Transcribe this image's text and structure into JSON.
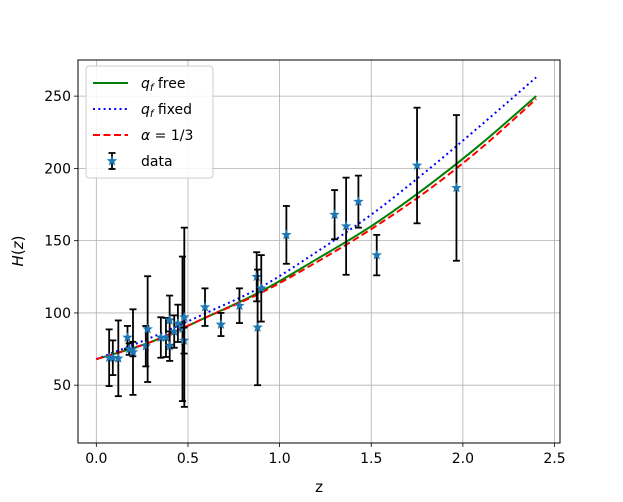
{
  "chart_data": {
    "type": "scatter",
    "xlabel": "z",
    "ylabel": "H(z)",
    "xlim": [
      -0.1,
      2.53
    ],
    "ylim": [
      10,
      275
    ],
    "grid": true,
    "x_ticks": [
      0.0,
      0.5,
      1.0,
      1.5,
      2.0,
      2.5
    ],
    "x_tick_labels": [
      "0.0",
      "0.5",
      "1.0",
      "1.5",
      "2.0",
      "2.5"
    ],
    "y_ticks": [
      50,
      100,
      150,
      200,
      250
    ],
    "y_tick_labels": [
      "50",
      "100",
      "150",
      "200",
      "250"
    ],
    "legend_position": "top-left",
    "legend": [
      {
        "label": "q_f free",
        "text_main": "q",
        "text_sub": "f",
        "text_rest": " free",
        "style": "solid",
        "color": "#008000"
      },
      {
        "label": "q_f fixed",
        "text_main": "q",
        "text_sub": "f",
        "text_rest": " fixed",
        "style": "dotted",
        "color": "#0000ff"
      },
      {
        "label": "α = 1/3",
        "text_main": "α",
        "text_sub": "",
        "text_rest": " = 1/3",
        "style": "dashed",
        "color": "#ff0000"
      },
      {
        "label": "data",
        "text_main": "",
        "text_sub": "",
        "text_rest": "data",
        "style": "marker",
        "color": "#1f77b4"
      }
    ],
    "series": [
      {
        "name": "q_f free",
        "style": "solid",
        "color": "#008000",
        "x": [
          0,
          0.3,
          0.6,
          0.9,
          1.2,
          1.5,
          1.8,
          2.1,
          2.4
        ],
        "y": [
          68,
          80,
          97,
          115,
          137,
          160,
          187,
          217,
          250
        ]
      },
      {
        "name": "q_f fixed",
        "style": "dotted",
        "color": "#0000ff",
        "x": [
          0,
          0.3,
          0.6,
          0.9,
          1.2,
          1.5,
          1.8,
          2.1,
          2.4
        ],
        "y": [
          68,
          83,
          100,
          118,
          142,
          168,
          198,
          230,
          263
        ]
      },
      {
        "name": "α = 1/3",
        "style": "dashed",
        "color": "#ff0000",
        "x": [
          0,
          0.3,
          0.6,
          0.9,
          1.2,
          1.5,
          1.8,
          2.1,
          2.4
        ],
        "y": [
          68,
          80,
          97,
          114,
          135,
          158,
          184,
          214,
          248
        ]
      }
    ],
    "data": {
      "name": "data",
      "color": "#1f77b4",
      "points": [
        {
          "x": 0.07,
          "y": 69,
          "err": 19.6
        },
        {
          "x": 0.09,
          "y": 69,
          "err": 12
        },
        {
          "x": 0.12,
          "y": 68.6,
          "err": 26.2
        },
        {
          "x": 0.17,
          "y": 83,
          "err": 8
        },
        {
          "x": 0.179,
          "y": 75,
          "err": 4
        },
        {
          "x": 0.199,
          "y": 75,
          "err": 5
        },
        {
          "x": 0.2,
          "y": 72.9,
          "err": 29.6
        },
        {
          "x": 0.27,
          "y": 77,
          "err": 14
        },
        {
          "x": 0.28,
          "y": 88.8,
          "err": 36.6
        },
        {
          "x": 0.352,
          "y": 83,
          "err": 14
        },
        {
          "x": 0.38,
          "y": 83,
          "err": 13.5
        },
        {
          "x": 0.4,
          "y": 95,
          "err": 17
        },
        {
          "x": 0.4004,
          "y": 77,
          "err": 10.2
        },
        {
          "x": 0.425,
          "y": 87.1,
          "err": 11.2
        },
        {
          "x": 0.445,
          "y": 92.8,
          "err": 12.9
        },
        {
          "x": 0.47,
          "y": 89,
          "err": 50
        },
        {
          "x": 0.4783,
          "y": 80.9,
          "err": 9
        },
        {
          "x": 0.48,
          "y": 97,
          "err": 62
        },
        {
          "x": 0.593,
          "y": 104,
          "err": 13
        },
        {
          "x": 0.68,
          "y": 92,
          "err": 8
        },
        {
          "x": 0.781,
          "y": 105,
          "err": 12
        },
        {
          "x": 0.875,
          "y": 125,
          "err": 17
        },
        {
          "x": 0.88,
          "y": 90,
          "err": 40
        },
        {
          "x": 0.9,
          "y": 117,
          "err": 23
        },
        {
          "x": 1.037,
          "y": 154,
          "err": 20
        },
        {
          "x": 1.3,
          "y": 168,
          "err": 17
        },
        {
          "x": 1.363,
          "y": 160,
          "err": 33.6
        },
        {
          "x": 1.43,
          "y": 177,
          "err": 18
        },
        {
          "x": 1.53,
          "y": 140,
          "err": 14
        },
        {
          "x": 1.75,
          "y": 202,
          "err": 40
        },
        {
          "x": 1.965,
          "y": 186.5,
          "err": 50.4
        }
      ]
    }
  }
}
